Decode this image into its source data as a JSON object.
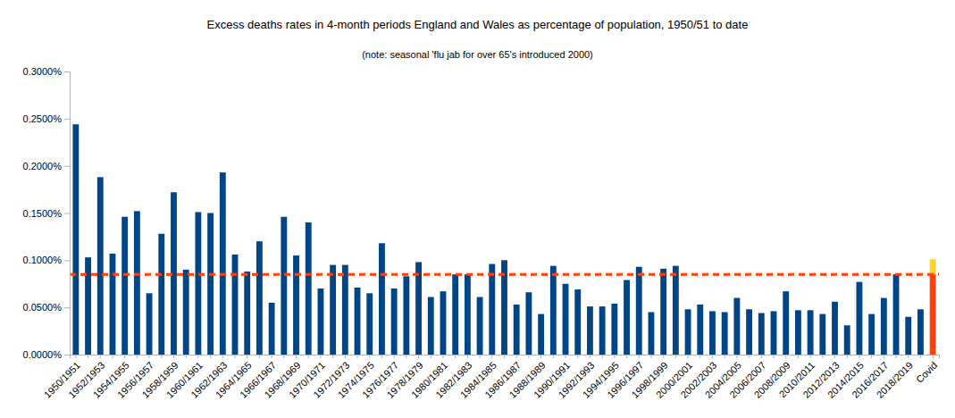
{
  "chart_data": {
    "type": "bar",
    "title": "Excess deaths rates in 4-month periods England and Wales as percentage of population, 1950/51 to date",
    "subtitle": "(note: seasonal 'flu jab for over 65's introduced 2000)",
    "stacked": true,
    "grid": false,
    "categories": [
      "1950/1951",
      null,
      "1952/1953",
      null,
      "1954/1955",
      null,
      "1956/1957",
      null,
      "1958/1959",
      null,
      "1960/1961",
      null,
      "1962/1963",
      null,
      "1964/1965",
      null,
      "1966/1967",
      null,
      "1968/1969",
      null,
      "1970/1971",
      null,
      "1972/1973",
      null,
      "1974/1975",
      null,
      "1976/1977",
      null,
      "1978/1979",
      null,
      "1980/1981",
      null,
      "1982/1983",
      null,
      "1984/1985",
      null,
      "1986/1987",
      null,
      "1988/1989",
      null,
      "1990/1991",
      null,
      "1992/1993",
      null,
      "1994/1995",
      null,
      "1996/1997",
      null,
      "1998/1999",
      null,
      "2000/2001",
      null,
      "2002/2003",
      null,
      "2004/2005",
      null,
      "2006/2007",
      null,
      "2008/2009",
      null,
      "2010/2011",
      null,
      "2012/2013",
      null,
      "2014/2015",
      null,
      "2016/2017",
      null,
      "2018/2019",
      null,
      "Covid"
    ],
    "series": [
      {
        "values": [
          0.244,
          0.103,
          0.188,
          0.107,
          0.146,
          0.152,
          0.065,
          0.128,
          0.172,
          0.09,
          0.151,
          0.15,
          0.193,
          0.106,
          0.088,
          0.12,
          0.055,
          0.146,
          0.105,
          0.14,
          0.07,
          0.095,
          0.095,
          0.071,
          0.065,
          0.118,
          0.07,
          0.083,
          0.098,
          0.061,
          0.067,
          0.085,
          0.085,
          0.061,
          0.096,
          0.1,
          0.053,
          0.066,
          0.043,
          0.094,
          0.075,
          0.069,
          0.051,
          0.051,
          0.054,
          0.079,
          0.093,
          0.045,
          0.091,
          0.094,
          0.048,
          0.053,
          0.046,
          0.045,
          0.06,
          0.048,
          0.044,
          0.046,
          0.067,
          0.047,
          0.047,
          0.043,
          0.056,
          0.031,
          0.077,
          0.043,
          0.06,
          0.085,
          0.04,
          0.048,
          0.085
        ],
        "colors": [
          "#004586",
          "#004586",
          "#004586",
          "#004586",
          "#004586",
          "#004586",
          "#004586",
          "#004586",
          "#004586",
          "#004586",
          "#004586",
          "#004586",
          "#004586",
          "#004586",
          "#004586",
          "#004586",
          "#004586",
          "#004586",
          "#004586",
          "#004586",
          "#004586",
          "#004586",
          "#004586",
          "#004586",
          "#004586",
          "#004586",
          "#004586",
          "#004586",
          "#004586",
          "#004586",
          "#004586",
          "#004586",
          "#004586",
          "#004586",
          "#004586",
          "#004586",
          "#004586",
          "#004586",
          "#004586",
          "#004586",
          "#004586",
          "#004586",
          "#004586",
          "#004586",
          "#004586",
          "#004586",
          "#004586",
          "#004586",
          "#004586",
          "#004586",
          "#004586",
          "#004586",
          "#004586",
          "#004586",
          "#004586",
          "#004586",
          "#004586",
          "#004586",
          "#004586",
          "#004586",
          "#004586",
          "#004586",
          "#004586",
          "#004586",
          "#004586",
          "#004586",
          "#004586",
          "#004586",
          "#004586",
          "#004586",
          "#ff420e"
        ]
      },
      {
        "values": [
          null,
          null,
          null,
          null,
          null,
          null,
          null,
          null,
          null,
          null,
          null,
          null,
          null,
          null,
          null,
          null,
          null,
          null,
          null,
          null,
          null,
          null,
          null,
          null,
          null,
          null,
          null,
          null,
          null,
          null,
          null,
          null,
          null,
          null,
          null,
          null,
          null,
          null,
          null,
          null,
          null,
          null,
          null,
          null,
          null,
          null,
          null,
          null,
          null,
          null,
          null,
          null,
          null,
          null,
          null,
          null,
          null,
          null,
          null,
          null,
          null,
          null,
          null,
          null,
          null,
          null,
          null,
          null,
          null,
          null,
          0.016
        ],
        "color": "#ffd320"
      }
    ],
    "reference_line": {
      "value": 0.085,
      "color": "#ff420e",
      "line_style": "dashed"
    },
    "ylim": [
      0,
      0.3
    ],
    "yticks": [
      {
        "value": 0,
        "label": "0.0000%"
      },
      {
        "value": 0.05,
        "label": "0.0500%"
      },
      {
        "value": 0.1,
        "label": "0.1000%"
      },
      {
        "value": 0.15,
        "label": "0.1500%"
      },
      {
        "value": 0.2,
        "label": "0.2000%"
      },
      {
        "value": 0.25,
        "label": "0.2500%"
      },
      {
        "value": 0.3,
        "label": "0.3000%"
      }
    ]
  }
}
